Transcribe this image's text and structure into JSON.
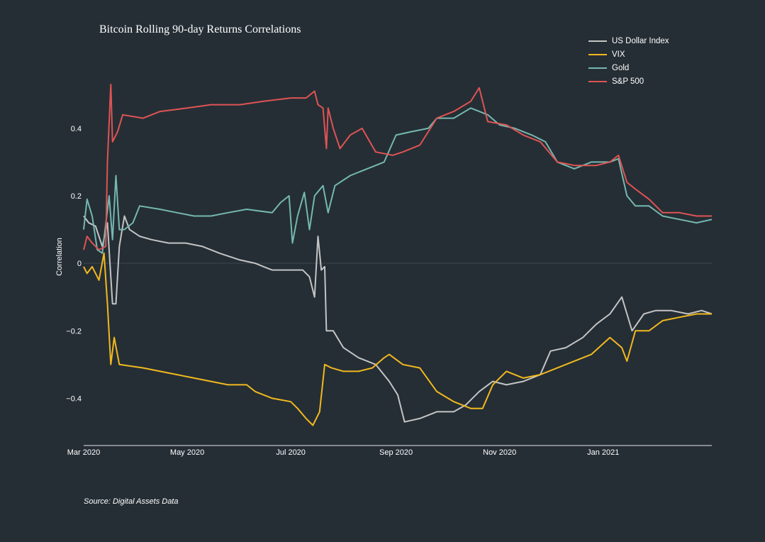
{
  "chart_data": {
    "type": "line",
    "title": "Bitcoin Rolling 90-day Returns Correlations",
    "ylabel": "Correlation",
    "xlabel": "",
    "source": "Source: Digital Assets Data",
    "x_range": [
      "2020-03-01",
      "2021-03-06"
    ],
    "ylim": [
      -0.54,
      0.57
    ],
    "y_ticks": [
      -0.4,
      -0.2,
      0,
      0.2,
      0.4
    ],
    "y_tick_labels": [
      "−0.4",
      "−0.2",
      "0",
      "0.2",
      "0.4"
    ],
    "x_ticks": [
      {
        "date": "2020-03-01",
        "label": "Mar 2020"
      },
      {
        "date": "2020-05-01",
        "label": "May 2020"
      },
      {
        "date": "2020-07-01",
        "label": "Jul 2020"
      },
      {
        "date": "2020-09-01",
        "label": "Sep 2020"
      },
      {
        "date": "2020-11-01",
        "label": "Nov 2020"
      },
      {
        "date": "2021-01-01",
        "label": "Jan 2021"
      }
    ],
    "legend_position": "top-right",
    "grid": false,
    "zero_line": true,
    "series": [
      {
        "name": "US Dollar Index",
        "color": "#c4c4c4",
        "points": [
          [
            "2020-03-01",
            0.14
          ],
          [
            "2020-03-04",
            0.12
          ],
          [
            "2020-03-08",
            0.11
          ],
          [
            "2020-03-12",
            0.05
          ],
          [
            "2020-03-15",
            0.12
          ],
          [
            "2020-03-18",
            -0.12
          ],
          [
            "2020-03-20",
            -0.12
          ],
          [
            "2020-03-22",
            0.05
          ],
          [
            "2020-03-25",
            0.14
          ],
          [
            "2020-03-28",
            0.1
          ],
          [
            "2020-04-03",
            0.08
          ],
          [
            "2020-04-10",
            0.07
          ],
          [
            "2020-04-20",
            0.06
          ],
          [
            "2020-04-30",
            0.06
          ],
          [
            "2020-05-10",
            0.05
          ],
          [
            "2020-05-20",
            0.03
          ],
          [
            "2020-06-01",
            0.01
          ],
          [
            "2020-06-10",
            0.0
          ],
          [
            "2020-06-15",
            -0.01
          ],
          [
            "2020-06-20",
            -0.02
          ],
          [
            "2020-07-01",
            -0.02
          ],
          [
            "2020-07-08",
            -0.02
          ],
          [
            "2020-07-12",
            -0.04
          ],
          [
            "2020-07-15",
            -0.1
          ],
          [
            "2020-07-17",
            0.08
          ],
          [
            "2020-07-19",
            -0.02
          ],
          [
            "2020-07-21",
            -0.01
          ],
          [
            "2020-07-22",
            -0.2
          ],
          [
            "2020-07-26",
            -0.2
          ],
          [
            "2020-08-01",
            -0.25
          ],
          [
            "2020-08-10",
            -0.28
          ],
          [
            "2020-08-20",
            -0.3
          ],
          [
            "2020-08-28",
            -0.35
          ],
          [
            "2020-09-02",
            -0.39
          ],
          [
            "2020-09-06",
            -0.47
          ],
          [
            "2020-09-15",
            -0.46
          ],
          [
            "2020-09-25",
            -0.44
          ],
          [
            "2020-10-05",
            -0.44
          ],
          [
            "2020-10-12",
            -0.42
          ],
          [
            "2020-10-20",
            -0.38
          ],
          [
            "2020-10-28",
            -0.35
          ],
          [
            "2020-11-05",
            -0.36
          ],
          [
            "2020-11-15",
            -0.35
          ],
          [
            "2020-11-25",
            -0.33
          ],
          [
            "2020-12-01",
            -0.26
          ],
          [
            "2020-12-10",
            -0.25
          ],
          [
            "2020-12-20",
            -0.22
          ],
          [
            "2020-12-28",
            -0.18
          ],
          [
            "2021-01-05",
            -0.15
          ],
          [
            "2021-01-12",
            -0.1
          ],
          [
            "2021-01-18",
            -0.2
          ],
          [
            "2021-01-25",
            -0.15
          ],
          [
            "2021-02-01",
            -0.14
          ],
          [
            "2021-02-10",
            -0.14
          ],
          [
            "2021-02-20",
            -0.15
          ],
          [
            "2021-02-28",
            -0.14
          ],
          [
            "2021-03-06",
            -0.15
          ]
        ]
      },
      {
        "name": "VIX",
        "color": "#f2b91e",
        "points": [
          [
            "2020-03-01",
            -0.01
          ],
          [
            "2020-03-03",
            -0.03
          ],
          [
            "2020-03-06",
            -0.01
          ],
          [
            "2020-03-10",
            -0.05
          ],
          [
            "2020-03-13",
            0.03
          ],
          [
            "2020-03-15",
            -0.12
          ],
          [
            "2020-03-17",
            -0.3
          ],
          [
            "2020-03-19",
            -0.22
          ],
          [
            "2020-03-22",
            -0.3
          ],
          [
            "2020-04-05",
            -0.31
          ],
          [
            "2020-04-15",
            -0.32
          ],
          [
            "2020-04-25",
            -0.33
          ],
          [
            "2020-05-05",
            -0.34
          ],
          [
            "2020-05-15",
            -0.35
          ],
          [
            "2020-05-25",
            -0.36
          ],
          [
            "2020-06-05",
            -0.36
          ],
          [
            "2020-06-10",
            -0.38
          ],
          [
            "2020-06-20",
            -0.4
          ],
          [
            "2020-07-01",
            -0.41
          ],
          [
            "2020-07-05",
            -0.43
          ],
          [
            "2020-07-10",
            -0.46
          ],
          [
            "2020-07-14",
            -0.48
          ],
          [
            "2020-07-18",
            -0.44
          ],
          [
            "2020-07-21",
            -0.3
          ],
          [
            "2020-07-25",
            -0.31
          ],
          [
            "2020-08-01",
            -0.32
          ],
          [
            "2020-08-10",
            -0.32
          ],
          [
            "2020-08-18",
            -0.31
          ],
          [
            "2020-08-25",
            -0.28
          ],
          [
            "2020-08-28",
            -0.27
          ],
          [
            "2020-09-05",
            -0.3
          ],
          [
            "2020-09-15",
            -0.31
          ],
          [
            "2020-09-25",
            -0.38
          ],
          [
            "2020-10-05",
            -0.41
          ],
          [
            "2020-10-15",
            -0.43
          ],
          [
            "2020-10-22",
            -0.43
          ],
          [
            "2020-10-28",
            -0.36
          ],
          [
            "2020-11-05",
            -0.32
          ],
          [
            "2020-11-15",
            -0.34
          ],
          [
            "2020-11-25",
            -0.33
          ],
          [
            "2020-12-05",
            -0.31
          ],
          [
            "2020-12-15",
            -0.29
          ],
          [
            "2020-12-25",
            -0.27
          ],
          [
            "2021-01-05",
            -0.22
          ],
          [
            "2021-01-12",
            -0.25
          ],
          [
            "2021-01-15",
            -0.29
          ],
          [
            "2021-01-20",
            -0.2
          ],
          [
            "2021-01-28",
            -0.2
          ],
          [
            "2021-02-05",
            -0.17
          ],
          [
            "2021-02-15",
            -0.16
          ],
          [
            "2021-02-25",
            -0.15
          ],
          [
            "2021-03-06",
            -0.15
          ]
        ]
      },
      {
        "name": "Gold",
        "color": "#75b8b1",
        "points": [
          [
            "2020-03-01",
            0.1
          ],
          [
            "2020-03-03",
            0.19
          ],
          [
            "2020-03-06",
            0.14
          ],
          [
            "2020-03-09",
            0.04
          ],
          [
            "2020-03-12",
            0.03
          ],
          [
            "2020-03-16",
            0.2
          ],
          [
            "2020-03-18",
            0.07
          ],
          [
            "2020-03-20",
            0.26
          ],
          [
            "2020-03-22",
            0.1
          ],
          [
            "2020-03-25",
            0.1
          ],
          [
            "2020-03-30",
            0.12
          ],
          [
            "2020-04-03",
            0.17
          ],
          [
            "2020-04-15",
            0.16
          ],
          [
            "2020-04-25",
            0.15
          ],
          [
            "2020-05-05",
            0.14
          ],
          [
            "2020-05-15",
            0.14
          ],
          [
            "2020-05-25",
            0.15
          ],
          [
            "2020-06-05",
            0.16
          ],
          [
            "2020-06-20",
            0.15
          ],
          [
            "2020-06-25",
            0.18
          ],
          [
            "2020-06-30",
            0.2
          ],
          [
            "2020-07-02",
            0.06
          ],
          [
            "2020-07-05",
            0.14
          ],
          [
            "2020-07-09",
            0.21
          ],
          [
            "2020-07-12",
            0.1
          ],
          [
            "2020-07-15",
            0.2
          ],
          [
            "2020-07-20",
            0.23
          ],
          [
            "2020-07-23",
            0.15
          ],
          [
            "2020-07-27",
            0.23
          ],
          [
            "2020-08-05",
            0.26
          ],
          [
            "2020-08-15",
            0.28
          ],
          [
            "2020-08-25",
            0.3
          ],
          [
            "2020-09-01",
            0.38
          ],
          [
            "2020-09-10",
            0.39
          ],
          [
            "2020-09-20",
            0.4
          ],
          [
            "2020-09-25",
            0.43
          ],
          [
            "2020-10-05",
            0.43
          ],
          [
            "2020-10-15",
            0.46
          ],
          [
            "2020-10-25",
            0.44
          ],
          [
            "2020-11-01",
            0.41
          ],
          [
            "2020-11-10",
            0.4
          ],
          [
            "2020-11-20",
            0.38
          ],
          [
            "2020-11-28",
            0.36
          ],
          [
            "2020-12-05",
            0.3
          ],
          [
            "2020-12-15",
            0.28
          ],
          [
            "2020-12-25",
            0.3
          ],
          [
            "2021-01-05",
            0.3
          ],
          [
            "2021-01-10",
            0.31
          ],
          [
            "2021-01-15",
            0.2
          ],
          [
            "2021-01-20",
            0.17
          ],
          [
            "2021-01-28",
            0.17
          ],
          [
            "2021-02-05",
            0.14
          ],
          [
            "2021-02-15",
            0.13
          ],
          [
            "2021-02-25",
            0.12
          ],
          [
            "2021-03-06",
            0.13
          ]
        ]
      },
      {
        "name": "S&P 500",
        "color": "#df5454",
        "points": [
          [
            "2020-03-01",
            0.04
          ],
          [
            "2020-03-03",
            0.08
          ],
          [
            "2020-03-06",
            0.06
          ],
          [
            "2020-03-10",
            0.04
          ],
          [
            "2020-03-14",
            0.05
          ],
          [
            "2020-03-15",
            0.3
          ],
          [
            "2020-03-17",
            0.53
          ],
          [
            "2020-03-18",
            0.36
          ],
          [
            "2020-03-21",
            0.39
          ],
          [
            "2020-03-24",
            0.44
          ],
          [
            "2020-04-05",
            0.43
          ],
          [
            "2020-04-15",
            0.45
          ],
          [
            "2020-05-01",
            0.46
          ],
          [
            "2020-05-15",
            0.47
          ],
          [
            "2020-06-01",
            0.47
          ],
          [
            "2020-06-15",
            0.48
          ],
          [
            "2020-07-01",
            0.49
          ],
          [
            "2020-07-10",
            0.49
          ],
          [
            "2020-07-15",
            0.51
          ],
          [
            "2020-07-17",
            0.47
          ],
          [
            "2020-07-20",
            0.46
          ],
          [
            "2020-07-22",
            0.34
          ],
          [
            "2020-07-23",
            0.46
          ],
          [
            "2020-07-26",
            0.4
          ],
          [
            "2020-07-30",
            0.34
          ],
          [
            "2020-08-05",
            0.38
          ],
          [
            "2020-08-12",
            0.4
          ],
          [
            "2020-08-20",
            0.33
          ],
          [
            "2020-08-30",
            0.32
          ],
          [
            "2020-09-05",
            0.33
          ],
          [
            "2020-09-15",
            0.35
          ],
          [
            "2020-09-25",
            0.43
          ],
          [
            "2020-10-05",
            0.45
          ],
          [
            "2020-10-15",
            0.48
          ],
          [
            "2020-10-20",
            0.52
          ],
          [
            "2020-10-25",
            0.42
          ],
          [
            "2020-11-05",
            0.41
          ],
          [
            "2020-11-15",
            0.38
          ],
          [
            "2020-11-25",
            0.36
          ],
          [
            "2020-12-05",
            0.3
          ],
          [
            "2020-12-15",
            0.29
          ],
          [
            "2020-12-28",
            0.29
          ],
          [
            "2021-01-05",
            0.3
          ],
          [
            "2021-01-10",
            0.32
          ],
          [
            "2021-01-15",
            0.24
          ],
          [
            "2021-01-20",
            0.22
          ],
          [
            "2021-01-28",
            0.19
          ],
          [
            "2021-02-05",
            0.15
          ],
          [
            "2021-02-15",
            0.15
          ],
          [
            "2021-02-25",
            0.14
          ],
          [
            "2021-03-06",
            0.14
          ]
        ]
      }
    ]
  }
}
